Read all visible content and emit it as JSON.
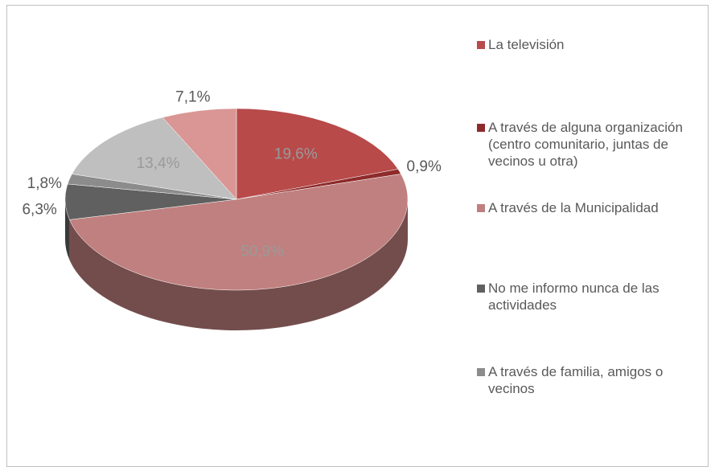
{
  "chart_data": {
    "type": "pie",
    "categories": [
      "La televisión",
      "A través de alguna organización (centro comunitario, juntas de vecinos u otra)",
      "A través de la Municipalidad",
      "No me informo nunca de las actividades",
      "A través de familia, amigos o vecinos",
      null,
      null
    ],
    "values": [
      19.6,
      0.9,
      50.9,
      6.3,
      1.8,
      13.4,
      7.1
    ],
    "value_labels": [
      "19,6%",
      "0,9%",
      "50,9%",
      "6,3%",
      "1,8%",
      "13,4%",
      "7,1%"
    ],
    "colors": [
      "#b84a4a",
      "#8e2b2b",
      "#c0807f",
      "#606060",
      "#8c8c8c",
      "#bfbfbf",
      "#d99694"
    ],
    "legend": "right"
  }
}
